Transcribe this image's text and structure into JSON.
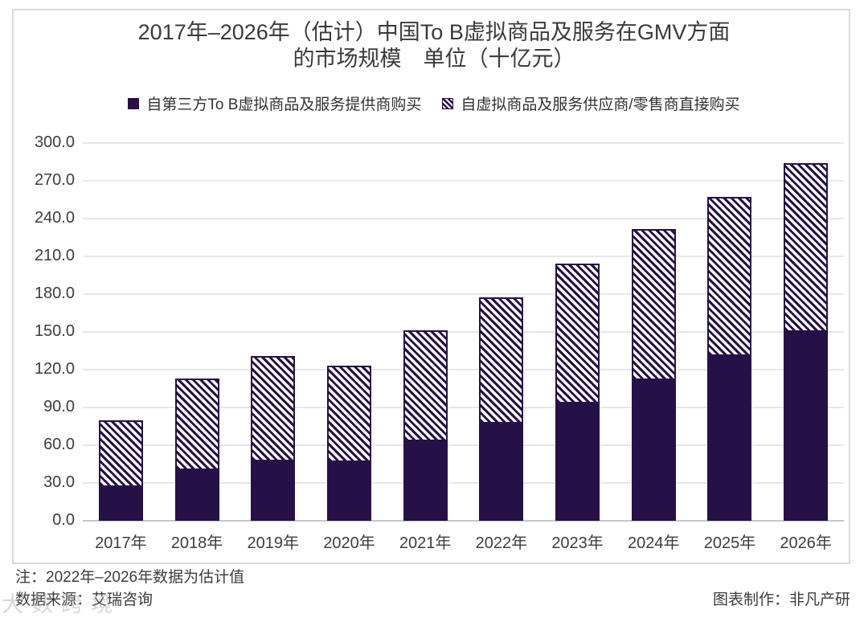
{
  "header": {
    "title_line1": "2017年–2026年（估计）中国To B虚拟商品及服务在GMV方面",
    "title_line2": "的市场规模　单位（十亿元）"
  },
  "legend": {
    "items": [
      {
        "label": "自第三方To B虚拟商品及服务提供商购买",
        "marker": "solid-square"
      },
      {
        "label": "自虚拟商品及服务供应商/零售商直接购买",
        "marker": "hatched-square"
      }
    ]
  },
  "chart_data": {
    "type": "bar",
    "stacked": true,
    "title": "2017年–2026年（估计）中国To B虚拟商品及服务在GMV方面的市场规模　单位（十亿元）",
    "unit": "十亿元",
    "categories": [
      "2017年",
      "2018年",
      "2019年",
      "2020年",
      "2021年",
      "2022年",
      "2023年",
      "2024年",
      "2025年",
      "2026年"
    ],
    "series": [
      {
        "name": "自第三方To B虚拟商品及服务提供商购买",
        "style": "solid",
        "values": [
          27,
          40,
          47,
          46.5,
          63,
          77.5,
          93,
          111.5,
          131,
          150
        ]
      },
      {
        "name": "自虚拟商品及服务供应商/零售商直接购买",
        "style": "hatch",
        "values": [
          53,
          73,
          84,
          76.5,
          88,
          100,
          111.5,
          120.5,
          126,
          134
        ]
      }
    ],
    "totals": [
      80,
      113,
      131,
      123,
      151,
      177.5,
      204.5,
      232,
      257,
      284
    ],
    "ylim": [
      0,
      300
    ],
    "ytick_step": 30,
    "ytick_labels": [
      "0.0",
      "30.0",
      "60.0",
      "90.0",
      "120.0",
      "150.0",
      "180.0",
      "210.0",
      "240.0",
      "270.0",
      "300.0"
    ],
    "grid": true,
    "legend_position": "top"
  },
  "footer": {
    "note": "注：2022年–2026年数据为估计值",
    "source": "数据来源：艾瑞咨询",
    "credit": "图表制作：非凡产研"
  },
  "watermark": {
    "text": "大数跨境"
  },
  "colors": {
    "bar": "#251147",
    "grid": "#E7E7EA",
    "axis_line": "#C6C6CA",
    "text": "#3D3D3D",
    "frame": "#D9D9D9"
  }
}
